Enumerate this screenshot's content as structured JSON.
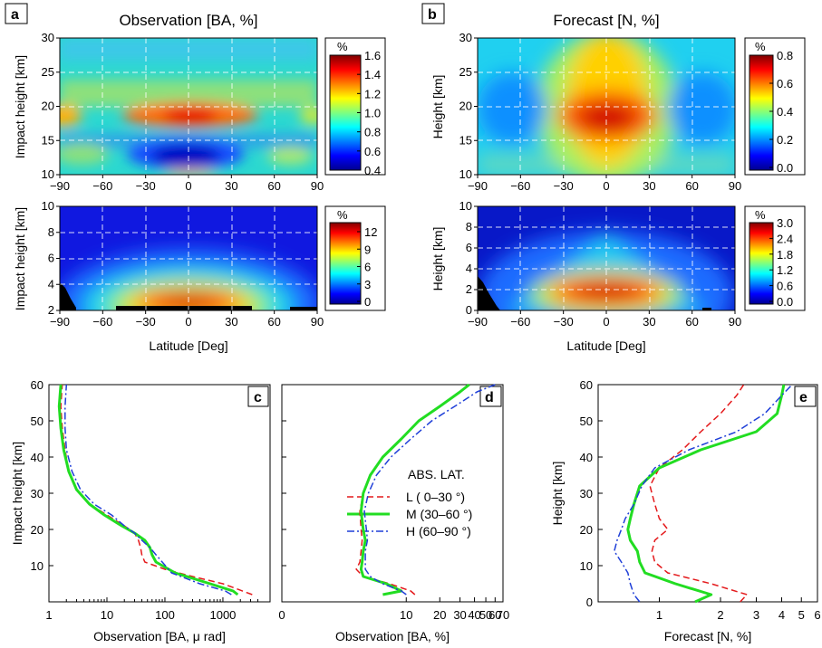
{
  "figure": {
    "a": {
      "label": "a",
      "title": "Observation [BA, %]",
      "top_ylabel": "Impact height [km]",
      "bottom_ylabel": "Impact height [km]",
      "xlabel": "Latitude [Deg]",
      "top_cbar": {
        "unit": "%",
        "ticks": [
          "1.6",
          "1.4",
          "1.2",
          "1.0",
          "0.8",
          "0.6",
          "0.4"
        ]
      },
      "bottom_cbar": {
        "unit": "%",
        "ticks": [
          "12",
          "9",
          "6",
          "3",
          "0"
        ]
      }
    },
    "b": {
      "label": "b",
      "title": "Forecast [N, %]",
      "top_ylabel": "Height [km]",
      "bottom_ylabel": "Height [km]",
      "xlabel": "Latitude [Deg]",
      "top_cbar": {
        "unit": "%",
        "ticks": [
          "0.8",
          "0.6",
          "0.4",
          "0.2",
          "0.0"
        ]
      },
      "bottom_cbar": {
        "unit": "%",
        "ticks": [
          "3.0",
          "2.4",
          "1.8",
          "1.2",
          "0.6",
          "0.0"
        ]
      }
    },
    "c": {
      "label": "c",
      "ylabel": "Impact height [km]",
      "xlabel": "Observation [BA, μ rad]"
    },
    "d": {
      "label": "d",
      "xlabel": "Observation [BA, %]"
    },
    "e": {
      "label": "e",
      "ylabel": "Height [km]",
      "xlabel": "Forecast [N, %]"
    },
    "legend": {
      "title": "ABS. LAT.",
      "items": [
        "L  (  0–30 °)",
        "M (30–60 °)",
        "H (60–90 °)"
      ]
    }
  },
  "chart_data": [
    {
      "type": "heatmap",
      "panel": "a-top",
      "x_ticks": [
        "−90",
        "−60",
        "−30",
        "0",
        "30",
        "60",
        "90"
      ],
      "y_ticks": [
        "10",
        "15",
        "20",
        "25",
        "30"
      ],
      "xlim": [
        -90,
        90
      ],
      "ylim": [
        10,
        30
      ],
      "clim": [
        0.4,
        1.6
      ],
      "description_values": [
        {
          "lat": 0,
          "h": 18.5,
          "value": 1.5
        },
        {
          "lat": 0,
          "h": 12.5,
          "value": 0.45
        },
        {
          "lat": -85,
          "h": 19,
          "value": 1.25
        }
      ]
    },
    {
      "type": "heatmap",
      "panel": "a-bottom",
      "x_ticks": [
        "−90",
        "−60",
        "−30",
        "0",
        "30",
        "60",
        "90"
      ],
      "y_ticks": [
        "2",
        "4",
        "6",
        "8",
        "10"
      ],
      "xlim": [
        -90,
        90
      ],
      "ylim": [
        2,
        10
      ],
      "clim": [
        0,
        13
      ],
      "description_values": [
        {
          "lat": 0,
          "h": 2.8,
          "value": 13
        }
      ]
    },
    {
      "type": "heatmap",
      "panel": "b-top",
      "x_ticks": [
        "−90",
        "−60",
        "−30",
        "0",
        "30",
        "60",
        "90"
      ],
      "y_ticks": [
        "10",
        "15",
        "20",
        "25",
        "30"
      ],
      "xlim": [
        -90,
        90
      ],
      "ylim": [
        10,
        30
      ],
      "clim": [
        0,
        0.8
      ],
      "description_values": [
        {
          "lat": 0,
          "h": 18,
          "value": 0.8
        }
      ]
    },
    {
      "type": "heatmap",
      "panel": "b-bottom",
      "x_ticks": [
        "−90",
        "−60",
        "−30",
        "0",
        "30",
        "60",
        "90"
      ],
      "y_ticks": [
        "0",
        "2",
        "4",
        "6",
        "8",
        "10"
      ],
      "xlim": [
        -90,
        90
      ],
      "ylim": [
        0,
        10
      ],
      "clim": [
        0,
        3
      ],
      "description_values": [
        {
          "lat": 0,
          "h": 2,
          "value": 3.0
        }
      ]
    },
    {
      "type": "line",
      "panel": "c",
      "xscale": "log",
      "xlim": [
        1,
        5000
      ],
      "ylim": [
        2,
        60
      ],
      "x_ticks": [
        "1",
        "10",
        "100",
        "1000"
      ],
      "y_ticks": [
        "10",
        "20",
        "30",
        "40",
        "50",
        "60"
      ],
      "series": [
        {
          "name": "L",
          "style": "dashed",
          "color": "#e41a1c",
          "x": [
            3200,
            1000,
            300,
            100,
            45,
            40,
            38,
            35,
            30,
            20,
            10,
            5,
            3,
            2.2,
            1.9,
            1.7,
            1.6,
            1.7
          ],
          "y": [
            2,
            5,
            7,
            9,
            11,
            13,
            15,
            17,
            19,
            21,
            24,
            27,
            31,
            36,
            42,
            48,
            54,
            60
          ]
        },
        {
          "name": "M",
          "style": "solid",
          "color": "#22dd22",
          "x": [
            1800,
            1500,
            600,
            150,
            70,
            60,
            55,
            45,
            30,
            18,
            9,
            5,
            3,
            2.2,
            1.8,
            1.6,
            1.5,
            1.6
          ],
          "y": [
            2,
            3,
            5,
            8,
            11,
            13,
            15,
            17,
            19,
            21,
            24,
            27,
            31,
            36,
            42,
            48,
            54,
            60
          ]
        },
        {
          "name": "H",
          "style": "dashdot",
          "color": "#1f3fd8",
          "x": [
            1400,
            1100,
            400,
            130,
            90,
            70,
            55,
            40,
            30,
            20,
            12,
            6,
            3.5,
            2.5,
            2,
            1.9,
            1.9,
            2.0
          ],
          "y": [
            2,
            3,
            5,
            8,
            11,
            13,
            15,
            17,
            19,
            21,
            24,
            27,
            31,
            36,
            42,
            48,
            54,
            60
          ]
        }
      ]
    },
    {
      "type": "line",
      "panel": "d",
      "xscale": "log",
      "xlim": [
        0,
        70
      ],
      "ylim": [
        2,
        60
      ],
      "x_ticks": [
        "0",
        "10",
        "20",
        "30",
        "40",
        "50",
        "60",
        "70"
      ],
      "y_ticks": [],
      "series": [
        {
          "name": "L",
          "style": "dashed",
          "color": "#e41a1c",
          "x": [
            12,
            11,
            7,
            3.8,
            3.2,
            3.5,
            3.6,
            3.7,
            3.6,
            3.5,
            3.8,
            4.5,
            6,
            9,
            13,
            20,
            30,
            37
          ],
          "y": [
            2,
            3,
            5,
            7,
            9,
            11,
            14,
            17,
            20,
            25,
            30,
            35,
            40,
            45,
            50,
            54,
            58,
            60
          ]
        },
        {
          "name": "M",
          "style": "solid",
          "color": "#22dd22",
          "x": [
            6,
            9,
            6.5,
            3.8,
            3.6,
            3.7,
            3.8,
            4,
            3.8,
            3.6,
            3.8,
            4.5,
            6,
            9,
            13,
            20,
            30,
            36
          ],
          "y": [
            2,
            3,
            5,
            7,
            9,
            11,
            14,
            17,
            20,
            25,
            30,
            35,
            40,
            45,
            50,
            54,
            58,
            60
          ]
        },
        {
          "name": "H",
          "style": "dashdot",
          "color": "#1f3fd8",
          "x": [
            10,
            9,
            6,
            4.5,
            4,
            4,
            4,
            4.2,
            4.1,
            3.9,
            4.3,
            5.2,
            7.2,
            11,
            17,
            27,
            42,
            60
          ],
          "y": [
            2,
            3,
            5,
            7,
            9,
            11,
            14,
            17,
            20,
            25,
            30,
            35,
            40,
            45,
            50,
            54,
            58,
            60
          ]
        }
      ]
    },
    {
      "type": "line",
      "panel": "e",
      "xscale": "log",
      "xlim": [
        0.5,
        6
      ],
      "ylim": [
        0,
        60
      ],
      "x_ticks": [
        "1",
        "2",
        "3",
        "4",
        "5",
        "6"
      ],
      "y_ticks": [
        "0",
        "10",
        "20",
        "30",
        "40",
        "50",
        "60"
      ],
      "series": [
        {
          "name": "L",
          "style": "dashed",
          "color": "#e41a1c",
          "x": [
            2.5,
            2.7,
            1.8,
            1.1,
            0.95,
            0.92,
            0.95,
            1.1,
            1.0,
            0.95,
            0.9,
            1.0,
            1.3,
            1.6,
            2.0,
            2.4,
            2.6
          ],
          "y": [
            0,
            2,
            5,
            8,
            11,
            14,
            17,
            20,
            23,
            27,
            32,
            37,
            42,
            47,
            52,
            57,
            60
          ]
        },
        {
          "name": "M",
          "style": "solid",
          "color": "#22dd22",
          "x": [
            1.5,
            1.8,
            1.2,
            0.85,
            0.8,
            0.78,
            0.72,
            0.7,
            0.72,
            0.75,
            0.8,
            1.0,
            1.6,
            3.0,
            3.8,
            4.0,
            4.1
          ],
          "y": [
            0,
            2,
            5,
            8,
            11,
            14,
            17,
            20,
            23,
            27,
            32,
            37,
            42,
            47,
            52,
            57,
            60
          ]
        },
        {
          "name": "H",
          "style": "dashdot",
          "color": "#1f3fd8",
          "x": [
            0.8,
            0.75,
            0.72,
            0.7,
            0.65,
            0.6,
            0.62,
            0.65,
            0.68,
            0.75,
            0.82,
            0.95,
            1.4,
            2.4,
            3.3,
            4.0,
            4.5
          ],
          "y": [
            0,
            2,
            5,
            8,
            11,
            14,
            17,
            20,
            23,
            27,
            32,
            37,
            42,
            47,
            52,
            57,
            60
          ]
        }
      ]
    }
  ]
}
